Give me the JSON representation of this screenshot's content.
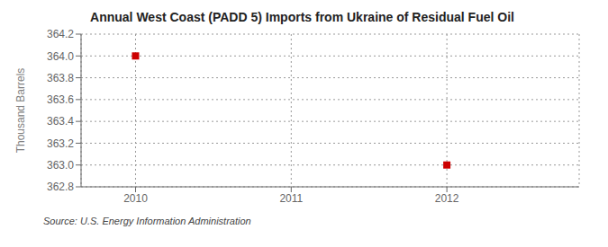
{
  "chart_data": {
    "type": "scatter",
    "title": "Annual West Coast (PADD 5) Imports from Ukraine of Residual Fuel Oil",
    "ylabel": "Thousand Barrels",
    "annotations": [
      "Source: U.S. Energy Information Administration"
    ],
    "x": [
      2010,
      2012
    ],
    "values": [
      364.0,
      363.0
    ],
    "xlim": [
      2009.65,
      2012.85
    ],
    "xticks": [
      2010,
      2011,
      2012
    ],
    "ylim": [
      362.8,
      364.2
    ],
    "yticks": [
      362.8,
      {
        "value": 363.0,
        "label": "363.0"
      },
      363.2,
      363.4,
      363.6,
      363.8,
      {
        "value": 364.0,
        "label": "364.0"
      },
      364.2
    ],
    "color": "#cc0000",
    "marker": "square",
    "grid": true
  }
}
